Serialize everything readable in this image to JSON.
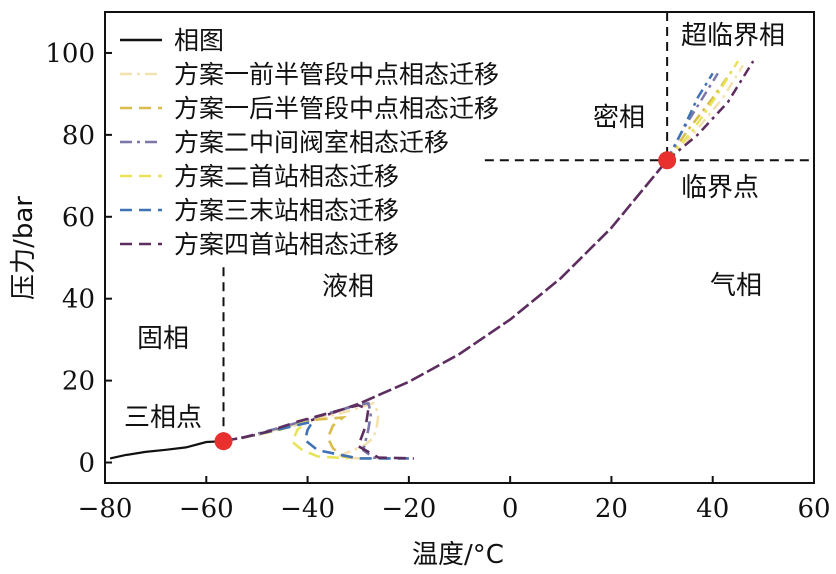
{
  "chart_data": {
    "type": "line",
    "xlabel": "温度/°C",
    "ylabel": "压力/bar",
    "xlim": [
      -80,
      60
    ],
    "ylim": [
      -5,
      110
    ],
    "xticks": [
      -80,
      -60,
      -40,
      -20,
      0,
      20,
      40,
      60
    ],
    "yticks": [
      0,
      20,
      40,
      60,
      80,
      100
    ],
    "xtick_labels": [
      "−80",
      "−60",
      "−40",
      "−20",
      "0",
      "20",
      "40",
      "60"
    ],
    "ytick_labels": [
      "0",
      "20",
      "40",
      "60",
      "80",
      "100"
    ],
    "legend_position": "top-left",
    "series": [
      {
        "name": "相图",
        "color": "#111111",
        "dash": "solid",
        "x": [
          -79,
          -76,
          -72,
          -68,
          -64,
          -60,
          -56.6
        ],
        "y": [
          1,
          1.8,
          2.6,
          3.1,
          3.7,
          5.0,
          5.2
        ]
      },
      {
        "name": "方案一前半管段中点相态迁移",
        "color": "#f3e2b0",
        "dash": "dashdot",
        "x": [
          -53,
          -48,
          -40,
          -32,
          -27,
          -26,
          -26.3,
          -27,
          -29,
          -31,
          -33,
          -34,
          -30,
          -27
        ],
        "y": [
          6,
          7.5,
          10,
          12.5,
          14.5,
          12,
          9,
          6,
          4,
          3,
          2,
          1.5,
          1,
          1
        ]
      },
      {
        "name": "方案一后半管段中点相态迁移",
        "color": "#d9bc4a",
        "dash": "dashed",
        "x": [
          -53,
          -46,
          -38,
          -33,
          -35,
          -36,
          -35,
          -33,
          -30
        ],
        "y": [
          6,
          8,
          10.5,
          11,
          9,
          6,
          3.5,
          1.5,
          1
        ]
      },
      {
        "name": "方案二中间阀室相态迁移",
        "color": "#7b78a8",
        "dash": "dashdot",
        "x": [
          -53,
          -44,
          -36,
          -30,
          -28,
          -27.5,
          -28,
          -29,
          -27,
          -24
        ],
        "y": [
          6,
          9,
          12,
          14,
          14.5,
          12,
          8,
          3,
          1.2,
          1
        ]
      },
      {
        "name": "方案二首站相态迁移",
        "color": "#e9e35a",
        "dash": "dashed",
        "x": [
          -53,
          -46,
          -40,
          -42,
          -43,
          -41,
          -38,
          -32
        ],
        "y": [
          6,
          7.8,
          10,
          8,
          5,
          3,
          1.5,
          1
        ]
      },
      {
        "name": "方案三末站相态迁移",
        "color": "#3f73b5",
        "dash": "dashed",
        "x": [
          -53,
          -46,
          -39,
          -40,
          -40.5,
          -38,
          -30,
          -20
        ],
        "y": [
          6,
          8,
          10,
          8,
          5.5,
          3,
          1,
          1
        ]
      },
      {
        "name": "方案四首站相态迁移",
        "color": "#5c2d5e",
        "dash": "dashed",
        "x": [
          -53,
          -48,
          -42,
          -36,
          -30,
          -28,
          -28.5,
          -30,
          -26,
          -19
        ],
        "y": [
          6,
          7.5,
          10,
          12,
          14,
          13,
          9,
          4,
          1.2,
          1
        ]
      }
    ],
    "vapor_curve": {
      "x": [
        -56.6,
        -50,
        -40,
        -30,
        -20,
        -10,
        0,
        10,
        20,
        31
      ],
      "y": [
        5.2,
        6.8,
        10,
        14.3,
        19.7,
        26.5,
        34.9,
        45,
        57.3,
        73.8
      ]
    },
    "dense_branches": [
      {
        "color": "#f3e2b0",
        "x": [
          31,
          36,
          42,
          46
        ],
        "y": [
          73.8,
          80,
          89,
          97
        ]
      },
      {
        "color": "#d9bc4a",
        "x": [
          31,
          35,
          40,
          44
        ],
        "y": [
          73.8,
          81,
          89,
          96
        ]
      },
      {
        "color": "#7b78a8",
        "x": [
          31,
          34,
          38,
          41
        ],
        "y": [
          73.8,
          81,
          89,
          95
        ]
      },
      {
        "color": "#e9e35a",
        "x": [
          31,
          36,
          41,
          45
        ],
        "y": [
          73.8,
          81,
          90,
          98
        ]
      },
      {
        "color": "#3f73b5",
        "x": [
          31,
          34,
          37,
          40
        ],
        "y": [
          73.8,
          81,
          89,
          95
        ]
      },
      {
        "color": "#5c2d5e",
        "x": [
          31,
          37,
          43,
          48
        ],
        "y": [
          73.8,
          80,
          88,
          98
        ]
      }
    ],
    "points": [
      {
        "name": "三相点",
        "x": -56.6,
        "y": 5.2
      },
      {
        "name": "临界点",
        "x": 31,
        "y": 73.8
      }
    ],
    "regions": {
      "solid": "固相",
      "liquid": "液相",
      "dense": "密相",
      "gas": "气相",
      "supercritical": "超临界相"
    },
    "annotation_labels": {
      "triple": "三相点",
      "critical": "临界点"
    }
  }
}
